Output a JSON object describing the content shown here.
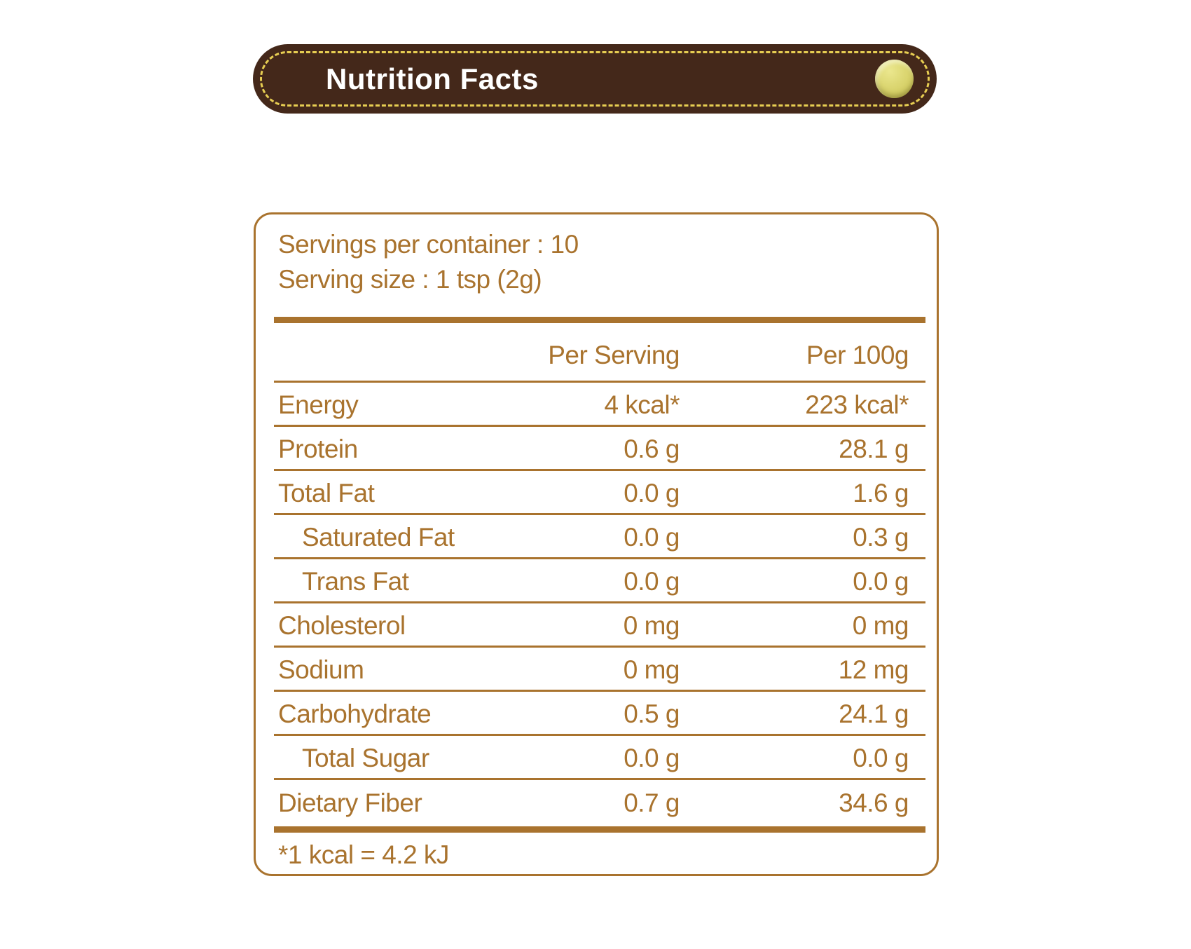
{
  "header": {
    "title": "Nutrition Facts"
  },
  "label": {
    "servings_per_container": "Servings per container : 10",
    "serving_size": "Serving size : 1 tsp (2g)",
    "columns": {
      "per_serving": "Per Serving",
      "per_100g": "Per 100g"
    },
    "rows": [
      {
        "label": "Energy",
        "per_serving": "4 kcal*",
        "per_100g": "223 kcal*"
      },
      {
        "label": "Protein",
        "per_serving": "0.6 g",
        "per_100g": "28.1 g"
      },
      {
        "label": "Total Fat",
        "per_serving": "0.0 g",
        "per_100g": "1.6 g"
      },
      {
        "label": "Saturated Fat",
        "per_serving": "0.0 g",
        "per_100g": "0.3 g"
      },
      {
        "label": "Trans Fat",
        "per_serving": "0.0 g",
        "per_100g": "0.0 g"
      },
      {
        "label": "Cholesterol",
        "per_serving": "0 mg",
        "per_100g": "0 mg"
      },
      {
        "label": "Sodium",
        "per_serving": "0 mg",
        "per_100g": "12 mg"
      },
      {
        "label": "Carbohydrate",
        "per_serving": "0.5 g",
        "per_100g": "24.1 g"
      },
      {
        "label": "Total Sugar",
        "per_serving": "0.0 g",
        "per_100g": "0.0 g"
      },
      {
        "label": "Dietary Fiber",
        "per_serving": "0.7 g",
        "per_100g": "34.6 g"
      }
    ],
    "footnote": "*1 kcal = 4.2 kJ"
  },
  "colors": {
    "header_brown": "#44281A",
    "dash_yellow": "#E7CE52",
    "stud_yellow": "#D8D36C",
    "label_gold_brown": "#A9732E",
    "title_text": "#FFFFFF",
    "background": "#FFFFFF"
  }
}
